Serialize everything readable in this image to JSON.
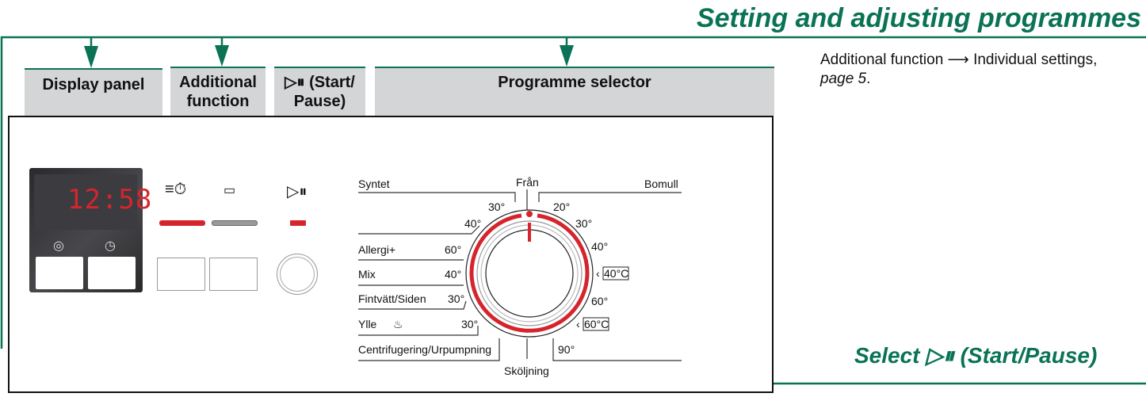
{
  "title": "Setting and adjusting programmes",
  "headers": {
    "display_panel": "Display panel",
    "additional_function": "Additional function",
    "start_pause": "(Start/ Pause)",
    "programme_selector": "Programme selector"
  },
  "note": {
    "text": "Additional function ⟶ Individual settings,",
    "page": "page 5",
    "suffix": "."
  },
  "select_label": "Select",
  "select_suffix": "(Start/Pause)",
  "display": {
    "time": "12:58"
  },
  "colors": {
    "accent": "#0a7355",
    "indicator": "#d6242c",
    "header_bg": "#d4d5d7"
  },
  "selector": {
    "top": "Från",
    "bottom": "Sköljning",
    "left_programmes": [
      {
        "name": "Syntet",
        "temps": [
          "30°",
          "40°"
        ]
      },
      {
        "name": "Allergi+",
        "temps": [
          "60°"
        ]
      },
      {
        "name": "Mix",
        "temps": [
          "40°"
        ]
      },
      {
        "name": "Fintvätt/Siden",
        "temps": [
          "30°"
        ]
      },
      {
        "name": "Ylle",
        "temps": [
          "30°"
        ]
      },
      {
        "name": "Centrifugering/Urpumpning",
        "temps": []
      }
    ],
    "right_programme": "Bomull",
    "right_temps": [
      "20°",
      "30°",
      "40°",
      "40°C",
      "60°",
      "60°C",
      "90°"
    ]
  }
}
